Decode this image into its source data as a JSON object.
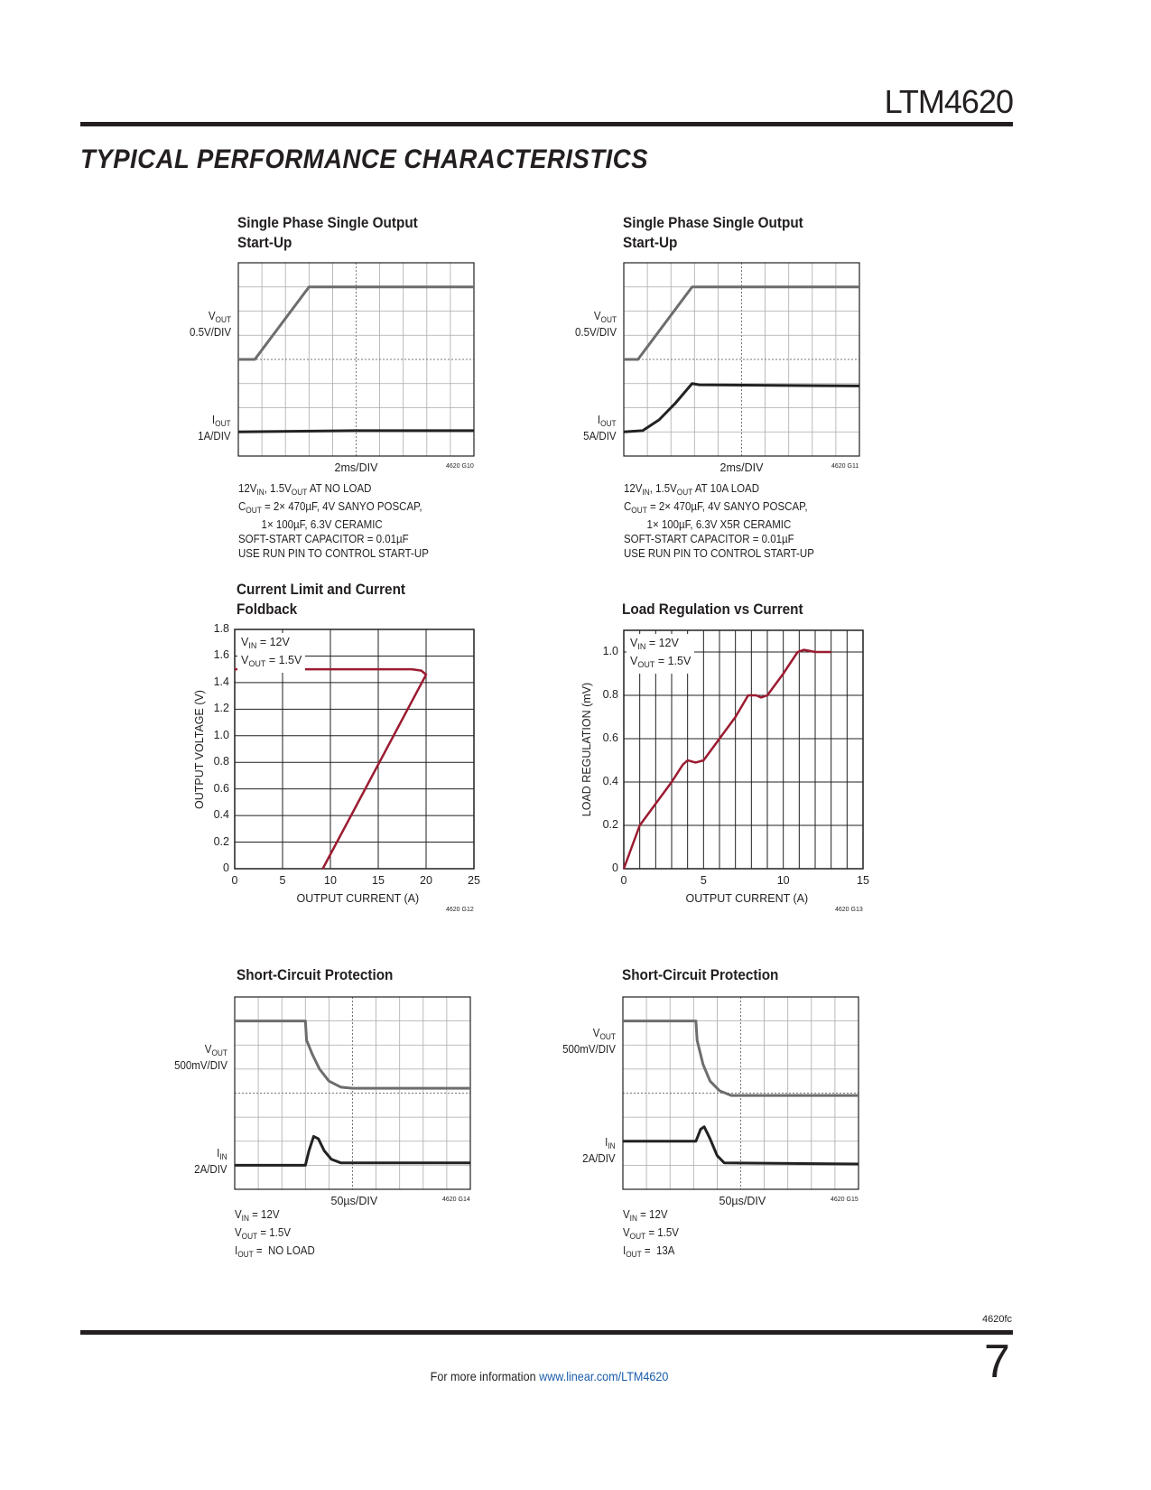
{
  "header": {
    "part_number": "LTM4620",
    "section_title": "TYPICAL PERFORMANCE CHARACTERISTICS"
  },
  "charts": [
    {
      "title": [
        "Single Phase Single Output",
        "Start-Up"
      ],
      "labels": [
        {
          "main": "V",
          "sub": "OUT",
          "scale": "0.5V/DIV"
        },
        {
          "main": "I",
          "sub": "OUT",
          "scale": "1A/DIV"
        }
      ],
      "timebase": "2ms/DIV",
      "code": "4620 G10",
      "notes": [
        [
          "12V",
          {
            "sub": "IN"
          },
          ", 1.5V",
          {
            "sub": "OUT"
          },
          " AT NO LOAD"
        ],
        [
          "C",
          {
            "sub": "OUT"
          },
          " = 2× 470µF, 4V SANYO POSCAP,"
        ],
        [
          "        1× 100µF, 6.3V CERAMIC"
        ],
        [
          "SOFT-START CAPACITOR = 0.01µF"
        ],
        [
          "USE RUN PIN TO CONTROL START-UP"
        ]
      ]
    },
    {
      "title": [
        "Single Phase Single Output",
        "Start-Up"
      ],
      "labels": [
        {
          "main": "V",
          "sub": "OUT",
          "scale": "0.5V/DIV"
        },
        {
          "main": "I",
          "sub": "OUT",
          "scale": "5A/DIV"
        }
      ],
      "timebase": "2ms/DIV",
      "code": "4620 G11",
      "notes": [
        [
          "12V",
          {
            "sub": "IN"
          },
          ", 1.5V",
          {
            "sub": "OUT"
          },
          " AT 10A LOAD"
        ],
        [
          "C",
          {
            "sub": "OUT"
          },
          " = 2× 470µF, 4V SANYO POSCAP,"
        ],
        [
          "        1× 100µF, 6.3V X5R CERAMIC"
        ],
        [
          "SOFT-START CAPACITOR = 0.01µF"
        ],
        [
          "USE RUN PIN TO CONTROL START-UP"
        ]
      ]
    },
    {
      "title": [
        "Current Limit and Current",
        "Foldback"
      ],
      "code": "4620 G12",
      "legend": [
        [
          "V",
          {
            "sub": "IN"
          },
          " = 12V"
        ],
        [
          "V",
          {
            "sub": "OUT"
          },
          " = 1.5V"
        ]
      ]
    },
    {
      "title": [
        "Load Regulation vs Current"
      ],
      "code": "4620 G13",
      "legend": [
        [
          "V",
          {
            "sub": "IN"
          },
          " = 12V"
        ],
        [
          "V",
          {
            "sub": "OUT"
          },
          " = 1.5V"
        ]
      ]
    },
    {
      "title": [
        "Short-Circuit Protection"
      ],
      "labels": [
        {
          "main": "V",
          "sub": "OUT",
          "scale": "500mV/DIV"
        },
        {
          "main": "I",
          "sub": "IN",
          "scale": "2A/DIV"
        }
      ],
      "timebase": "50µs/DIV",
      "code": "4620 G14",
      "notes": [
        [
          "V",
          {
            "sub": "IN"
          },
          " = 12V"
        ],
        [
          "V",
          {
            "sub": "OUT"
          },
          " = 1.5V"
        ],
        [
          "I",
          {
            "sub": "OUT"
          },
          " =  NO LOAD"
        ]
      ]
    },
    {
      "title": [
        "Short-Circuit Protection"
      ],
      "labels": [
        {
          "main": "V",
          "sub": "OUT",
          "scale": "500mV/DIV"
        },
        {
          "main": "I",
          "sub": "IN",
          "scale": "2A/DIV"
        }
      ],
      "timebase": "50µs/DIV",
      "code": "4620 G15",
      "notes": [
        [
          "V",
          {
            "sub": "IN"
          },
          " = 12V"
        ],
        [
          "V",
          {
            "sub": "OUT"
          },
          " = 1.5V"
        ],
        [
          "I",
          {
            "sub": "OUT"
          },
          " =  13A"
        ]
      ]
    }
  ],
  "chart_data": [
    {
      "type": "line",
      "kind": "scope",
      "divisions": [
        10,
        8
      ],
      "series": [
        {
          "name": "VOUT",
          "color": "#6d6d6d",
          "points": [
            [
              0,
              4.0
            ],
            [
              0.7,
              4.0
            ],
            [
              3,
              7.0
            ],
            [
              10,
              7.0
            ]
          ]
        },
        {
          "name": "IOUT",
          "color": "#222222",
          "points": [
            [
              0,
              1.0
            ],
            [
              5,
              1.05
            ],
            [
              10,
              1.05
            ]
          ]
        }
      ]
    },
    {
      "type": "line",
      "kind": "scope",
      "divisions": [
        10,
        8
      ],
      "series": [
        {
          "name": "VOUT",
          "color": "#6d6d6d",
          "points": [
            [
              0,
              4.0
            ],
            [
              0.6,
              4.0
            ],
            [
              2.9,
              7.0
            ],
            [
              10,
              7.0
            ]
          ]
        },
        {
          "name": "IOUT",
          "color": "#222222",
          "points": [
            [
              0,
              1.0
            ],
            [
              0.8,
              1.05
            ],
            [
              1.5,
              1.5
            ],
            [
              2.2,
              2.2
            ],
            [
              2.9,
              3.0
            ],
            [
              3.2,
              2.95
            ],
            [
              10,
              2.9
            ]
          ]
        }
      ]
    },
    {
      "type": "line",
      "kind": "xy",
      "xlabel": "OUTPUT CURRENT (A)",
      "ylabel": "OUTPUT VOLTAGE (V)",
      "xlim": [
        0,
        25
      ],
      "ylim": [
        0,
        1.8
      ],
      "xticks": [
        0,
        5,
        10,
        15,
        20,
        25
      ],
      "yticks": [
        0,
        0.2,
        0.4,
        0.6,
        0.8,
        1.0,
        1.2,
        1.4,
        1.6,
        1.8
      ],
      "ytick_labels": [
        "0",
        "0.2",
        "0.4",
        "0.6",
        "0.8",
        "1.0",
        "1.2",
        "1.4",
        "1.6",
        "1.8"
      ],
      "xgrid_step": 5,
      "ygrid_step": 0.2,
      "series": [
        {
          "name": "VOUT",
          "color": "#9b1b30",
          "points": [
            [
              0,
              1.5
            ],
            [
              18.5,
              1.5
            ],
            [
              19.5,
              1.49
            ],
            [
              20,
              1.46
            ],
            [
              9.2,
              0
            ]
          ]
        }
      ]
    },
    {
      "type": "line",
      "kind": "xy",
      "xlabel": "OUTPUT CURRENT (A)",
      "ylabel": "LOAD REGULATION (mV)",
      "xlim": [
        0,
        15
      ],
      "ylim": [
        0,
        1.1
      ],
      "xticks": [
        0,
        5,
        10,
        15
      ],
      "yticks": [
        0,
        0.2,
        0.4,
        0.6,
        0.8,
        1.0
      ],
      "ytick_labels": [
        "0",
        "0.2",
        "0.4",
        "0.6",
        "0.8",
        "1.0"
      ],
      "xgrid_step": 1,
      "ygrid_step": 0.2,
      "series": [
        {
          "name": "Load Regulation",
          "color": "#9b1b30",
          "points": [
            [
              0,
              0
            ],
            [
              0.5,
              0.1
            ],
            [
              1,
              0.2
            ],
            [
              1.5,
              0.25
            ],
            [
              2,
              0.3
            ],
            [
              3,
              0.4
            ],
            [
              3.7,
              0.48
            ],
            [
              4,
              0.5
            ],
            [
              4.5,
              0.49
            ],
            [
              5,
              0.5
            ],
            [
              6,
              0.6
            ],
            [
              7,
              0.7
            ],
            [
              7.8,
              0.8
            ],
            [
              8.3,
              0.8
            ],
            [
              8.6,
              0.79
            ],
            [
              9,
              0.8
            ],
            [
              10,
              0.9
            ],
            [
              10.9,
              1.0
            ],
            [
              11.3,
              1.01
            ],
            [
              12,
              1.0
            ],
            [
              13,
              1.0
            ]
          ]
        }
      ]
    },
    {
      "type": "line",
      "kind": "scope",
      "divisions": [
        10,
        8
      ],
      "series": [
        {
          "name": "VOUT",
          "color": "#6d6d6d",
          "points": [
            [
              0,
              7.0
            ],
            [
              3,
              7.0
            ],
            [
              3.05,
              6.2
            ],
            [
              3.3,
              5.6
            ],
            [
              3.6,
              5.0
            ],
            [
              4,
              4.5
            ],
            [
              4.5,
              4.25
            ],
            [
              5,
              4.2
            ],
            [
              10,
              4.2
            ]
          ]
        },
        {
          "name": "IIN",
          "color": "#222222",
          "points": [
            [
              0,
              1.0
            ],
            [
              3,
              1.0
            ],
            [
              3.15,
              1.6
            ],
            [
              3.35,
              2.2
            ],
            [
              3.55,
              2.1
            ],
            [
              3.8,
              1.6
            ],
            [
              4.1,
              1.25
            ],
            [
              4.5,
              1.1
            ],
            [
              10,
              1.1
            ]
          ]
        }
      ]
    },
    {
      "type": "line",
      "kind": "scope",
      "divisions": [
        10,
        8
      ],
      "series": [
        {
          "name": "VOUT",
          "color": "#6d6d6d",
          "points": [
            [
              0,
              7.0
            ],
            [
              3.1,
              7.0
            ],
            [
              3.15,
              6.2
            ],
            [
              3.4,
              5.2
            ],
            [
              3.7,
              4.5
            ],
            [
              4.1,
              4.1
            ],
            [
              4.6,
              3.9
            ],
            [
              10,
              3.9
            ]
          ]
        },
        {
          "name": "IIN",
          "color": "#222222",
          "points": [
            [
              0,
              2.0
            ],
            [
              3.1,
              2.0
            ],
            [
              3.3,
              2.5
            ],
            [
              3.45,
              2.6
            ],
            [
              3.7,
              2.1
            ],
            [
              4.0,
              1.4
            ],
            [
              4.3,
              1.1
            ],
            [
              10,
              1.05
            ]
          ]
        }
      ]
    }
  ],
  "footer": {
    "doc_code": "4620fc",
    "page_number": "7",
    "info_text": "For more information ",
    "link_text": "www.linear.com/LTM4620"
  }
}
